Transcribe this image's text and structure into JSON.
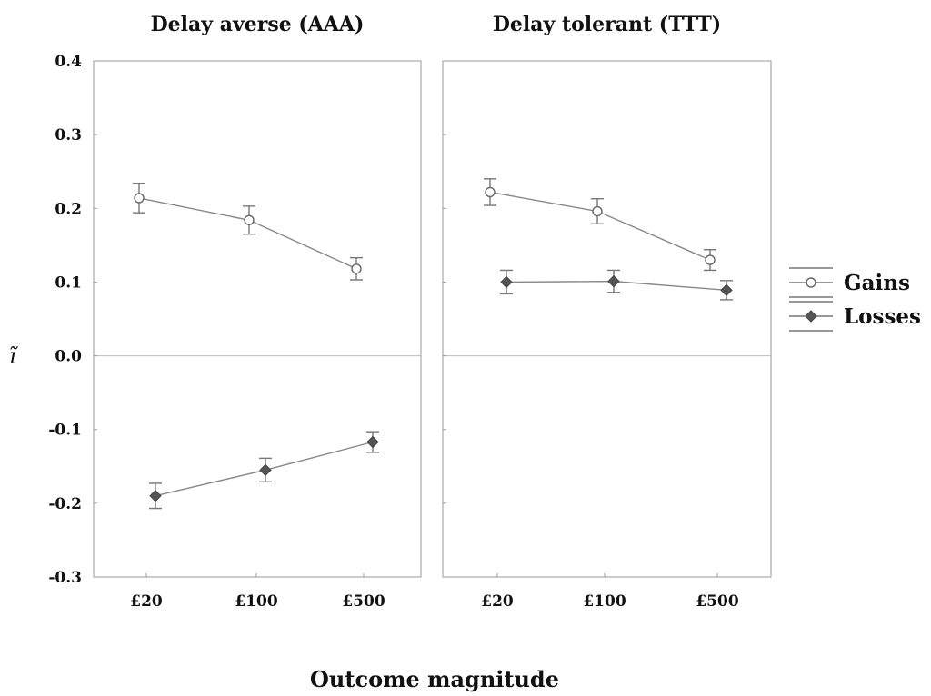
{
  "chart_data": {
    "type": "line",
    "xlabel": "Outcome magnitude",
    "ylabel": "ĩ",
    "ylim": [
      -0.3,
      0.4
    ],
    "yticks": [
      "0.4",
      "0.3",
      "0.2",
      "0.1",
      "0.0",
      "-0.1",
      "-0.2",
      "-0.3"
    ],
    "categories": [
      "£20",
      "£100",
      "£500"
    ],
    "legend": {
      "position": "right",
      "entries": [
        "Gains",
        "Losses"
      ]
    },
    "colors": {
      "gains_fill": "#ffffff",
      "losses_fill": "#555555",
      "line": "#888888",
      "zero_line": "#bbbbbb"
    },
    "panels": [
      {
        "title": "Delay averse (AAA)",
        "series": [
          {
            "name": "Gains",
            "values": [
              0.214,
              0.184,
              0.118
            ],
            "errors": [
              0.02,
              0.019,
              0.015
            ]
          },
          {
            "name": "Losses",
            "values": [
              -0.19,
              -0.155,
              -0.117
            ],
            "errors": [
              0.017,
              0.016,
              0.014
            ]
          }
        ]
      },
      {
        "title": "Delay tolerant (TTT)",
        "series": [
          {
            "name": "Gains",
            "values": [
              0.222,
              0.196,
              0.13
            ],
            "errors": [
              0.018,
              0.017,
              0.014
            ]
          },
          {
            "name": "Losses",
            "values": [
              0.1,
              0.101,
              0.089
            ],
            "errors": [
              0.016,
              0.015,
              0.013
            ]
          }
        ]
      }
    ]
  }
}
